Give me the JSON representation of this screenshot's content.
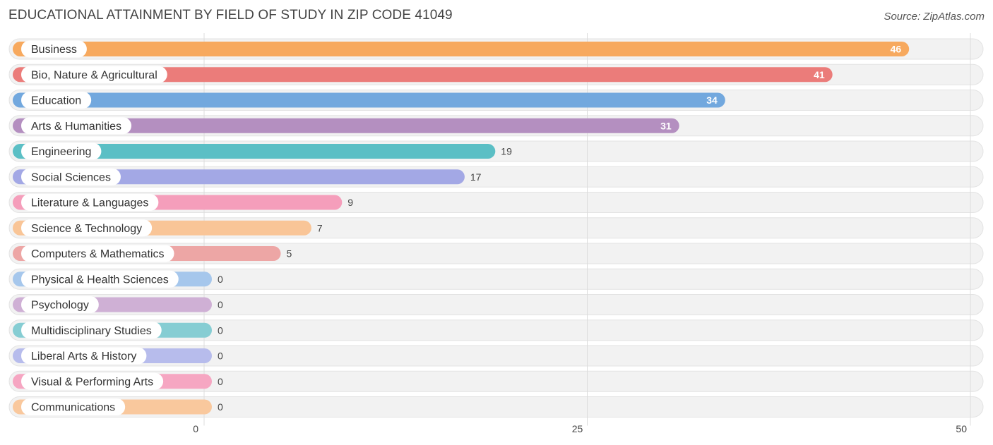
{
  "header": {
    "title": "EDUCATIONAL ATTAINMENT BY FIELD OF STUDY IN ZIP CODE 41049",
    "source": "Source: ZipAtlas.com"
  },
  "chart_data": {
    "type": "bar",
    "orientation": "horizontal",
    "title": "EDUCATIONAL ATTAINMENT BY FIELD OF STUDY IN ZIP CODE 41049",
    "xlabel": "",
    "ylabel": "",
    "xlim": [
      0,
      50
    ],
    "ticks": [
      0,
      25,
      50
    ],
    "grid": true,
    "categories": [
      "Business",
      "Bio, Nature & Agricultural",
      "Education",
      "Arts & Humanities",
      "Engineering",
      "Social Sciences",
      "Literature & Languages",
      "Science & Technology",
      "Computers & Mathematics",
      "Physical & Health Sciences",
      "Psychology",
      "Multidisciplinary Studies",
      "Liberal Arts & History",
      "Visual & Performing Arts",
      "Communications"
    ],
    "values": [
      46,
      41,
      34,
      31,
      19,
      17,
      9,
      7,
      5,
      0,
      0,
      0,
      0,
      0,
      0
    ],
    "colors": [
      "#f7a95e",
      "#eb7c7a",
      "#72a8de",
      "#b48fc0",
      "#5bbfc5",
      "#a3a8e5",
      "#f59ebb",
      "#f9c597",
      "#eda6a5",
      "#a6c7ec",
      "#cfb0d5",
      "#86cdd3",
      "#b7bcec",
      "#f6a6c2",
      "#f9c89d"
    ]
  }
}
